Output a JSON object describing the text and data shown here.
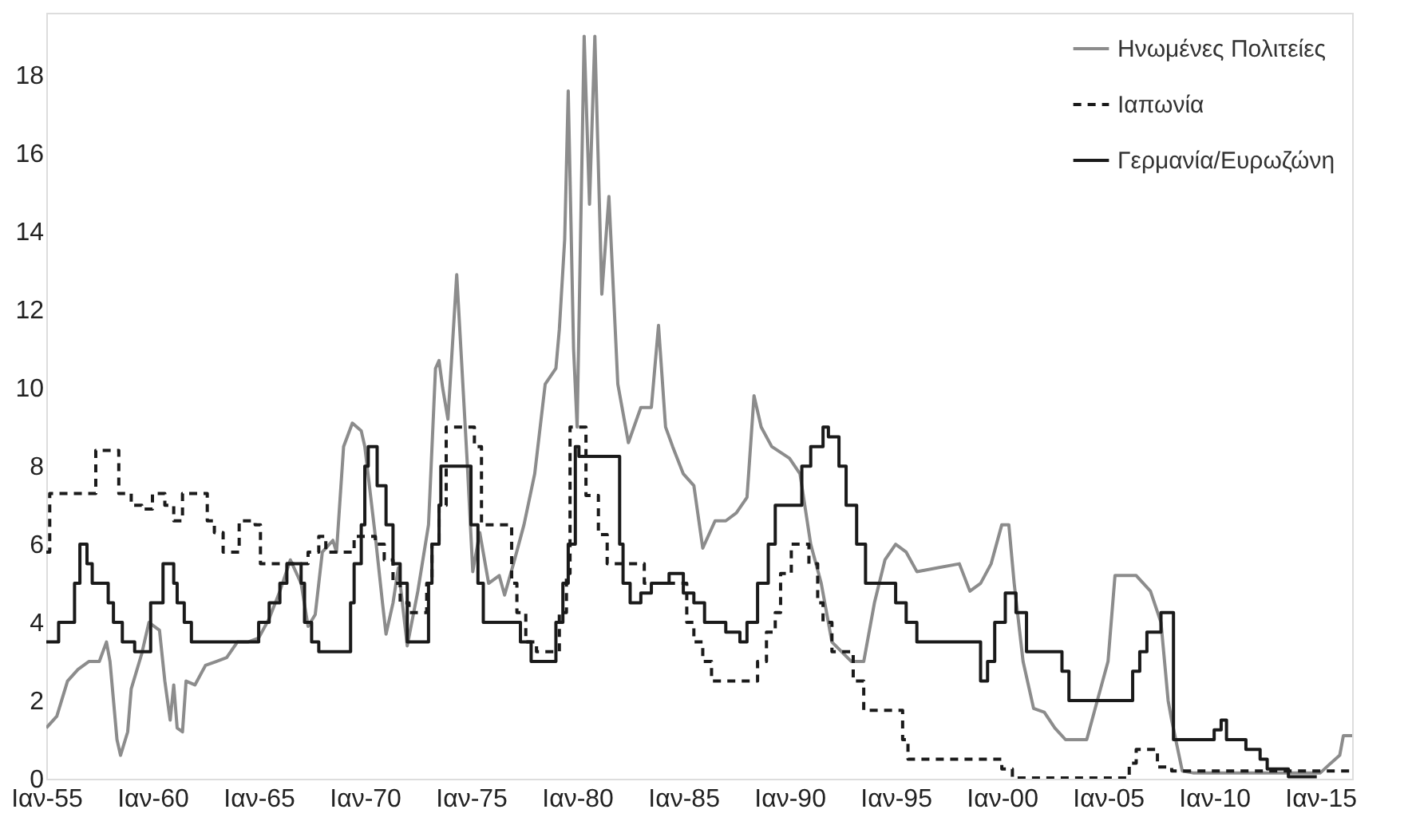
{
  "chart_data": {
    "type": "line",
    "xlim": [
      "1955-01",
      "2016-07"
    ],
    "xticks": [
      {
        "value": "1955-01",
        "label": "Ιαν-55"
      },
      {
        "value": "1960-01",
        "label": "Ιαν-60"
      },
      {
        "value": "1965-01",
        "label": "Ιαν-65"
      },
      {
        "value": "1970-01",
        "label": "Ιαν-70"
      },
      {
        "value": "1975-01",
        "label": "Ιαν-75"
      },
      {
        "value": "1980-01",
        "label": "Ιαν-80"
      },
      {
        "value": "1985-01",
        "label": "Ιαν-85"
      },
      {
        "value": "1990-01",
        "label": "Ιαν-90"
      },
      {
        "value": "1995-01",
        "label": "Ιαν-95"
      },
      {
        "value": "2000-01",
        "label": "Ιαν-00"
      },
      {
        "value": "2005-01",
        "label": "Ιαν-05"
      },
      {
        "value": "2010-01",
        "label": "Ιαν-10"
      },
      {
        "value": "2015-01",
        "label": "Ιαν-15"
      }
    ],
    "ylim": [
      0,
      19.6
    ],
    "yticks": [
      0,
      2,
      4,
      6,
      8,
      10,
      12,
      14,
      16,
      18
    ],
    "legend": "top right",
    "series": [
      {
        "name": "Ηνωμένες Πολιτείες",
        "color": "#8c8c8c",
        "type": "line",
        "line_style": "solid",
        "x": [
          "1955-01",
          "1955-07",
          "1956-01",
          "1956-07",
          "1957-01",
          "1957-07",
          "1957-11",
          "1958-01",
          "1958-05",
          "1958-07",
          "1958-11",
          "1959-01",
          "1959-07",
          "1959-11",
          "1960-05",
          "1960-08",
          "1960-11",
          "1961-01",
          "1961-03",
          "1961-06",
          "1961-08",
          "1962-01",
          "1962-07",
          "1963-01",
          "1963-07",
          "1964-01",
          "1964-07",
          "1965-01",
          "1965-07",
          "1966-01",
          "1966-07",
          "1967-01",
          "1967-05",
          "1967-09",
          "1968-01",
          "1968-07",
          "1968-09",
          "1969-01",
          "1969-06",
          "1969-11",
          "1970-01",
          "1970-07",
          "1970-11",
          "1971-01",
          "1971-05",
          "1971-08",
          "1972-01",
          "1972-07",
          "1973-01",
          "1973-05",
          "1973-07",
          "1973-09",
          "1973-12",
          "1974-05",
          "1974-11",
          "1975-02",
          "1975-06",
          "1975-11",
          "1976-05",
          "1976-08",
          "1977-01",
          "1977-07",
          "1978-01",
          "1978-07",
          "1979-01",
          "1979-03",
          "1979-06",
          "1979-08",
          "1979-11",
          "1980-01",
          "1980-05",
          "1980-08",
          "1980-11",
          "1981-03",
          "1981-07",
          "1981-12",
          "1982-06",
          "1983-01",
          "1983-07",
          "1983-11",
          "1984-03",
          "1984-07",
          "1985-01",
          "1985-07",
          "1985-12",
          "1986-07",
          "1987-01",
          "1987-07",
          "1988-01",
          "1988-05",
          "1988-09",
          "1989-03",
          "1990-01",
          "1990-07",
          "1991-01",
          "1991-07",
          "1992-01",
          "1992-12",
          "1993-07",
          "1994-01",
          "1994-07",
          "1995-01",
          "1995-07",
          "1996-01",
          "1997-01",
          "1998-01",
          "1998-07",
          "1999-01",
          "1999-07",
          "2000-01",
          "2000-05",
          "2000-08",
          "2001-01",
          "2001-07",
          "2002-01",
          "2002-07",
          "2003-01",
          "2004-01",
          "2004-07",
          "2005-01",
          "2005-05",
          "2006-05",
          "2007-01",
          "2007-07",
          "2007-11",
          "2008-01",
          "2008-07",
          "2009-01",
          "2015-01",
          "2015-07",
          "2015-12",
          "2016-02",
          "2016-07"
        ],
        "values": [
          1.3,
          1.6,
          2.5,
          2.8,
          3.0,
          3.0,
          3.5,
          3.0,
          1.0,
          0.6,
          1.2,
          2.3,
          3.2,
          4.0,
          3.8,
          2.5,
          1.5,
          2.4,
          1.3,
          1.2,
          2.5,
          2.4,
          2.9,
          3.0,
          3.1,
          3.5,
          3.5,
          3.6,
          4.1,
          4.8,
          5.6,
          5.0,
          3.9,
          4.2,
          5.8,
          6.1,
          5.8,
          8.5,
          9.1,
          8.9,
          8.5,
          6.2,
          4.5,
          3.7,
          4.5,
          5.4,
          3.4,
          4.8,
          6.5,
          10.5,
          10.7,
          10.0,
          9.2,
          12.9,
          8.0,
          5.3,
          6.3,
          5.0,
          5.2,
          4.7,
          5.5,
          6.5,
          7.8,
          10.1,
          10.5,
          11.5,
          13.8,
          17.6,
          11.0,
          9.0,
          19.0,
          14.7,
          19.0,
          12.4,
          14.9,
          10.1,
          8.6,
          9.5,
          9.5,
          11.6,
          9.0,
          8.5,
          7.8,
          7.5,
          5.9,
          6.6,
          6.6,
          6.8,
          7.2,
          9.8,
          9.0,
          8.5,
          8.2,
          7.8,
          6.0,
          5.0,
          3.5,
          3.0,
          3.0,
          4.5,
          5.6,
          6.0,
          5.8,
          5.3,
          5.4,
          5.5,
          4.8,
          5.0,
          5.5,
          6.5,
          6.5,
          5.0,
          3.0,
          1.8,
          1.7,
          1.3,
          1.0,
          1.0,
          2.0,
          3.0,
          5.2,
          5.2,
          4.8,
          4.0,
          2.0,
          1.5,
          0.2,
          0.15,
          0.15,
          0.4,
          0.6,
          1.1,
          1.1
        ]
      },
      {
        "name": "Ιαπωνία",
        "color": "#1a1a1a",
        "type": "step",
        "line_style": "dashed",
        "x": [
          "1955-01",
          "1955-03",
          "1957-05",
          "1958-06",
          "1959-01",
          "1959-07",
          "1960-01",
          "1960-08",
          "1961-01",
          "1961-06",
          "1962-08",
          "1962-12",
          "1963-05",
          "1964-02",
          "1964-11",
          "1965-02",
          "1967-05",
          "1967-11",
          "1968-03",
          "1969-07",
          "1970-07",
          "1970-12",
          "1971-05",
          "1971-09",
          "1972-02",
          "1972-12",
          "1973-03",
          "1973-07",
          "1973-11",
          "1975-03",
          "1975-07",
          "1976-12",
          "1977-03",
          "1977-08",
          "1978-02",
          "1979-03",
          "1979-07",
          "1979-09",
          "1980-06",
          "1981-01",
          "1981-06",
          "1983-03",
          "1985-03",
          "1985-07",
          "1985-12",
          "1986-05",
          "1988-07",
          "1988-12",
          "1989-05",
          "1989-08",
          "1990-02",
          "1990-12",
          "1991-05",
          "1991-08",
          "1992-01",
          "1993-01",
          "1993-07",
          "1995-05",
          "1995-08",
          "2000-01",
          "2000-07",
          "2006-01",
          "2006-05",
          "2007-05",
          "2008-01",
          "2008-08",
          "2016-07"
        ],
        "values": [
          5.8,
          7.3,
          8.4,
          7.3,
          7.0,
          6.9,
          7.3,
          7.0,
          6.6,
          7.3,
          6.6,
          6.3,
          5.8,
          6.6,
          6.5,
          5.5,
          5.8,
          6.2,
          5.8,
          6.2,
          6.0,
          5.6,
          5.0,
          4.5,
          4.25,
          5.0,
          6.0,
          7.0,
          9.0,
          8.5,
          6.5,
          5.0,
          4.25,
          3.5,
          3.25,
          4.25,
          5.25,
          9.0,
          7.25,
          6.25,
          5.5,
          5.0,
          4.0,
          3.5,
          3.0,
          2.5,
          3.0,
          3.75,
          4.25,
          5.25,
          6.0,
          5.5,
          4.5,
          4.0,
          3.25,
          2.5,
          1.75,
          1.0,
          0.5,
          0.25,
          0.02,
          0.4,
          0.75,
          0.3,
          0.2,
          0.2,
          0.2
        ]
      },
      {
        "name": "Γερμανία/Ευρωζώνη",
        "color": "#1a1a1a",
        "type": "step",
        "line_style": "solid",
        "x": [
          "1955-01",
          "1955-08",
          "1956-05",
          "1956-08",
          "1956-12",
          "1957-03",
          "1957-12",
          "1958-03",
          "1958-08",
          "1959-03",
          "1959-12",
          "1960-07",
          "1961-01",
          "1961-03",
          "1961-07",
          "1961-11",
          "1965-01",
          "1965-07",
          "1966-01",
          "1966-05",
          "1967-01",
          "1967-03",
          "1967-07",
          "1967-11",
          "1969-01",
          "1969-05",
          "1969-07",
          "1969-11",
          "1970-01",
          "1970-03",
          "1970-08",
          "1971-01",
          "1971-05",
          "1971-09",
          "1972-01",
          "1972-09",
          "1973-01",
          "1973-03",
          "1973-07",
          "1973-08",
          "1974-11",
          "1975-01",
          "1975-05",
          "1975-08",
          "1977-01",
          "1977-05",
          "1977-11",
          "1978-11",
          "1979-01",
          "1979-05",
          "1979-08",
          "1979-12",
          "1980-02",
          "1982-01",
          "1982-03",
          "1982-07",
          "1983-01",
          "1983-07",
          "1984-05",
          "1985-01",
          "1985-07",
          "1986-01",
          "1987-01",
          "1987-09",
          "1988-01",
          "1988-07",
          "1989-01",
          "1989-05",
          "1990-05",
          "1990-08",
          "1991-01",
          "1991-08",
          "1991-11",
          "1992-05",
          "1992-09",
          "1993-03",
          "1993-08",
          "1994-08",
          "1995-01",
          "1995-07",
          "1996-01",
          "1998-07",
          "1999-01",
          "1999-05",
          "1999-09",
          "2000-03",
          "2000-09",
          "2001-03",
          "2002-07",
          "2002-11",
          "2003-03",
          "2005-11",
          "2006-03",
          "2006-07",
          "2006-11",
          "2007-07",
          "2008-02",
          "2009-11",
          "2010-01",
          "2010-05",
          "2010-08",
          "2011-07",
          "2012-03",
          "2012-07",
          "2013-07",
          "2014-11"
        ],
        "values": [
          3.5,
          4.0,
          5.0,
          6.0,
          5.5,
          5.0,
          4.5,
          4.0,
          3.5,
          3.25,
          4.5,
          5.5,
          5.0,
          4.5,
          4.0,
          3.5,
          4.0,
          4.5,
          5.0,
          5.5,
          5.0,
          4.0,
          3.5,
          3.25,
          3.25,
          4.5,
          5.5,
          6.5,
          8.0,
          8.5,
          7.5,
          6.5,
          5.5,
          5.0,
          3.5,
          3.5,
          5.0,
          6.0,
          7.0,
          8.0,
          8.0,
          6.5,
          5.0,
          4.0,
          4.0,
          3.5,
          3.0,
          3.0,
          4.0,
          5.0,
          6.0,
          8.5,
          8.25,
          6.0,
          5.0,
          4.5,
          4.75,
          5.0,
          5.25,
          4.75,
          4.5,
          4.0,
          3.75,
          3.5,
          4.0,
          5.0,
          6.0,
          7.0,
          7.0,
          8.0,
          8.5,
          9.0,
          8.75,
          8.0,
          7.0,
          6.0,
          5.0,
          5.0,
          4.5,
          4.0,
          3.5,
          3.5,
          2.5,
          3.0,
          4.0,
          4.75,
          4.25,
          3.25,
          3.25,
          2.75,
          2.0,
          2.0,
          2.75,
          3.25,
          3.75,
          4.25,
          1.0,
          1.0,
          1.25,
          1.5,
          1.0,
          0.75,
          0.5,
          0.25,
          0.05,
          0.05
        ]
      }
    ]
  }
}
